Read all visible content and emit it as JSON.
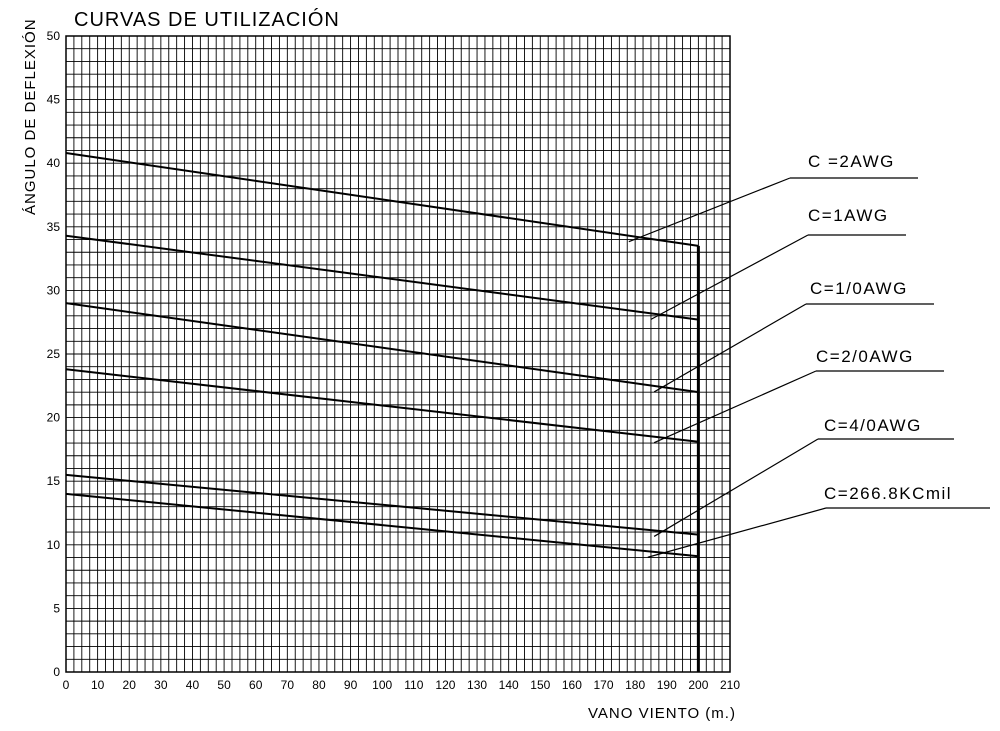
{
  "chart_data": {
    "type": "line",
    "title": "CURVAS DE UTILIZACIÓN",
    "xlabel": "VANO VIENTO (m.)",
    "ylabel": "ÁNGULO DE DEFLEXIÓN",
    "xlim": [
      0,
      210
    ],
    "ylim": [
      0,
      50
    ],
    "x_ticks": [
      0,
      10,
      20,
      30,
      40,
      50,
      60,
      70,
      80,
      90,
      100,
      110,
      120,
      130,
      140,
      150,
      160,
      170,
      180,
      190,
      200,
      210
    ],
    "y_ticks": [
      0,
      5,
      10,
      15,
      20,
      25,
      30,
      35,
      40,
      45,
      50
    ],
    "grid": true,
    "legend_placement": "right",
    "limit_line_x": 200,
    "series": [
      {
        "name": "C =2AWG",
        "x": [
          0,
          200
        ],
        "y": [
          40.8,
          33.5
        ]
      },
      {
        "name": "C=1AWG",
        "x": [
          0,
          200
        ],
        "y": [
          34.3,
          27.7
        ]
      },
      {
        "name": "C=1/0AWG",
        "x": [
          0,
          200
        ],
        "y": [
          29.0,
          22.0
        ]
      },
      {
        "name": "C=2/0AWG",
        "x": [
          0,
          200
        ],
        "y": [
          23.8,
          18.1
        ]
      },
      {
        "name": "C=4/0AWG",
        "x": [
          0,
          200
        ],
        "y": [
          15.5,
          10.8
        ]
      },
      {
        "name": "C=266.8KCmil",
        "x": [
          0,
          200
        ],
        "y": [
          14.0,
          9.1
        ]
      }
    ]
  }
}
